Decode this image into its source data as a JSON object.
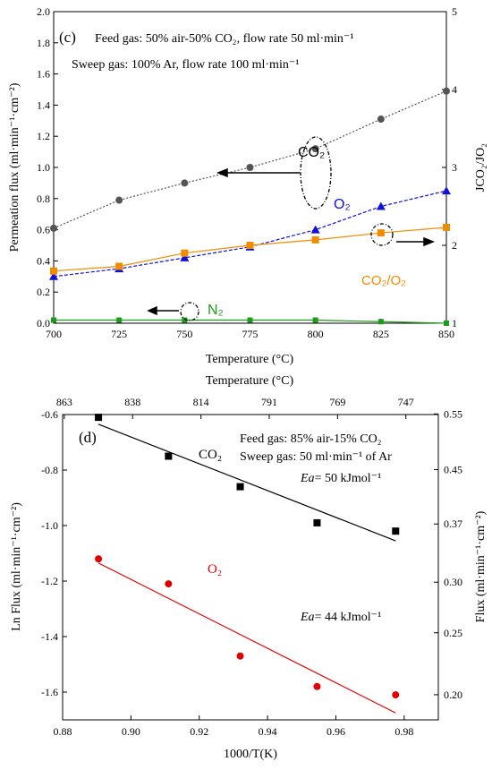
{
  "chart_data": [
    {
      "type": "line",
      "panel_label": "(c)",
      "x": [
        700,
        725,
        750,
        775,
        800,
        825,
        850
      ],
      "xlim": [
        700,
        850
      ],
      "x_ticks": [
        "700",
        "725",
        "750",
        "775",
        "800",
        "825",
        "850"
      ],
      "xlabel": "Temperature (°C)",
      "ylabel": "Permeation flux (ml·min⁻¹·cm⁻²)",
      "ylim": [
        0,
        2
      ],
      "y_ticks": [
        "0.0",
        "0.2",
        "0.4",
        "0.6",
        "0.8",
        "1.0",
        "1.2",
        "1.4",
        "1.6",
        "1.8",
        "2.0"
      ],
      "y2label": "JCO₂/JO₂",
      "y2lim": [
        1,
        5
      ],
      "y2_ticks": [
        "1",
        "2",
        "3",
        "4",
        "5"
      ],
      "annotations": {
        "feed": "Feed gas: 50% air-50% CO₂, flow rate 50 ml·min⁻¹",
        "sweep": "Sweep gas: 100% Ar, flow rate 100 ml·min⁻¹"
      },
      "series": [
        {
          "name": "CO₂",
          "axis": "left",
          "color": "#555555",
          "marker": "circle",
          "values": [
            0.61,
            0.79,
            0.9,
            1.0,
            1.12,
            1.31,
            1.49
          ]
        },
        {
          "name": "O₂",
          "axis": "left",
          "color": "#1010d8",
          "marker": "triangle",
          "values": [
            0.3,
            0.35,
            0.42,
            0.49,
            0.6,
            0.75,
            0.85
          ]
        },
        {
          "name": "CO₂/O₂",
          "axis": "right",
          "color": "#f08c00",
          "marker": "square",
          "values": [
            1.67,
            1.73,
            1.9,
            2.0,
            2.07,
            2.16,
            2.23
          ]
        },
        {
          "name": "N₂",
          "axis": "left",
          "color": "#1e9a1e",
          "marker": "square",
          "values": [
            0.02,
            0.02,
            0.02,
            0.02,
            0.02,
            0.01,
            0.0
          ]
        }
      ],
      "colors": {
        "co2": "#555555",
        "o2": "#1010d8",
        "ratio": "#f08c00",
        "n2": "#1e9a1e"
      }
    },
    {
      "type": "scatter",
      "panel_label": "(d)",
      "xlabel": "1000/T(K)",
      "xlim": [
        0.88,
        0.99
      ],
      "x_ticks": [
        "0.88",
        "0.90",
        "0.92",
        "0.94",
        "0.96",
        "0.98"
      ],
      "x2label": "Temperature (°C)",
      "x2_ticks": [
        "863",
        "838",
        "814",
        "791",
        "769",
        "747"
      ],
      "ylabel": "Ln Flux (ml·min⁻¹·cm⁻²)",
      "ylim": [
        -1.7,
        -0.6
      ],
      "y_ticks": [
        "-0.6",
        "-0.8",
        "-1.0",
        "-1.2",
        "-1.4",
        "-1.6"
      ],
      "y2label": "Flux (ml·min⁻¹·cm⁻²)",
      "y2_ticks": [
        "0.55",
        "0.45",
        "0.37",
        "0.30",
        "0.25",
        "0.20"
      ],
      "annotations": {
        "feed": "Feed gas: 85% air-15% CO₂",
        "sweep": "Sweep gas:  50 ml·min⁻¹ of Ar",
        "ea_co2": "= 50 kJmol⁻¹",
        "ea_o2": "= 44 kJmol⁻¹",
        "ea_symbol": "Ea"
      },
      "series": [
        {
          "name": "CO₂",
          "color": "#000000",
          "marker": "square",
          "x": [
            0.8905,
            0.911,
            0.932,
            0.9545,
            0.9775
          ],
          "y": [
            -0.61,
            -0.75,
            -0.86,
            -0.99,
            -1.02
          ],
          "fit": [
            [
              0.8905,
              -0.635
            ],
            [
              0.9775,
              -1.055
            ]
          ]
        },
        {
          "name": "O₂",
          "color": "#e00000",
          "marker": "circle",
          "x": [
            0.8905,
            0.911,
            0.932,
            0.9545,
            0.9775
          ],
          "y": [
            -1.12,
            -1.21,
            -1.47,
            -1.58,
            -1.61
          ],
          "fit": [
            [
              0.8905,
              -1.135
            ],
            [
              0.9775,
              -1.675
            ]
          ]
        }
      ]
    }
  ]
}
